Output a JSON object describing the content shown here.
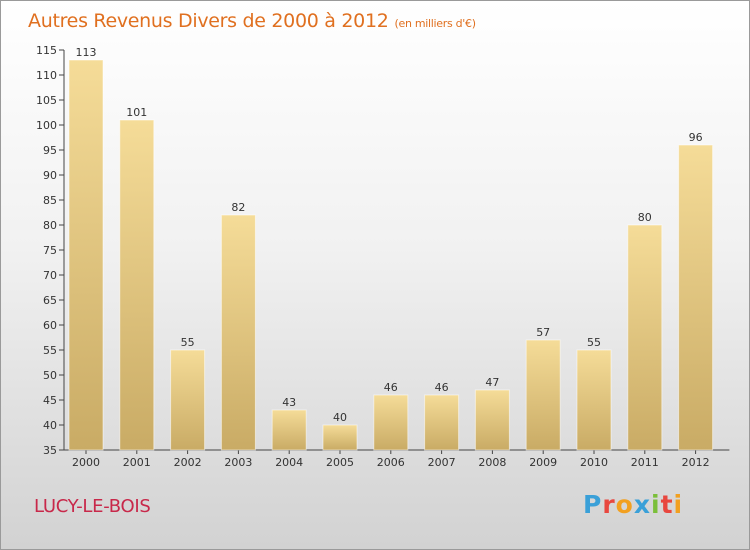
{
  "header": {
    "title": "Autres Revenus Divers de 2000 à 2012",
    "subtitle": "(en milliers d'€)"
  },
  "footer": {
    "city": "LUCY-LE-BOIS",
    "logo": {
      "letters": [
        "P",
        "r",
        "o",
        "x",
        "i",
        "t",
        "i"
      ],
      "colors": [
        "#3aa0d8",
        "#e8473f",
        "#f2a020",
        "#3aa0d8",
        "#7bbf3a",
        "#e8473f",
        "#f2a020"
      ]
    }
  },
  "colors": {
    "bar_light": "#f5dc98",
    "bar_dark": "#c9ab65",
    "title": "#e07020",
    "city": "#c8284a"
  },
  "chart_data": {
    "type": "bar",
    "categories": [
      "2000",
      "2001",
      "2002",
      "2003",
      "2004",
      "2005",
      "2006",
      "2007",
      "2008",
      "2009",
      "2010",
      "2011",
      "2012"
    ],
    "values": [
      113,
      101,
      55,
      82,
      43,
      40,
      46,
      46,
      47,
      57,
      55,
      80,
      96
    ],
    "title": "Autres Revenus Divers de 2000 à 2012",
    "xlabel": "",
    "ylabel": "",
    "ylim": [
      35,
      115
    ],
    "yticks": [
      35,
      40,
      45,
      50,
      55,
      60,
      65,
      70,
      75,
      80,
      85,
      90,
      95,
      100,
      105,
      110,
      115
    ],
    "grid": false,
    "data_labels": true
  }
}
